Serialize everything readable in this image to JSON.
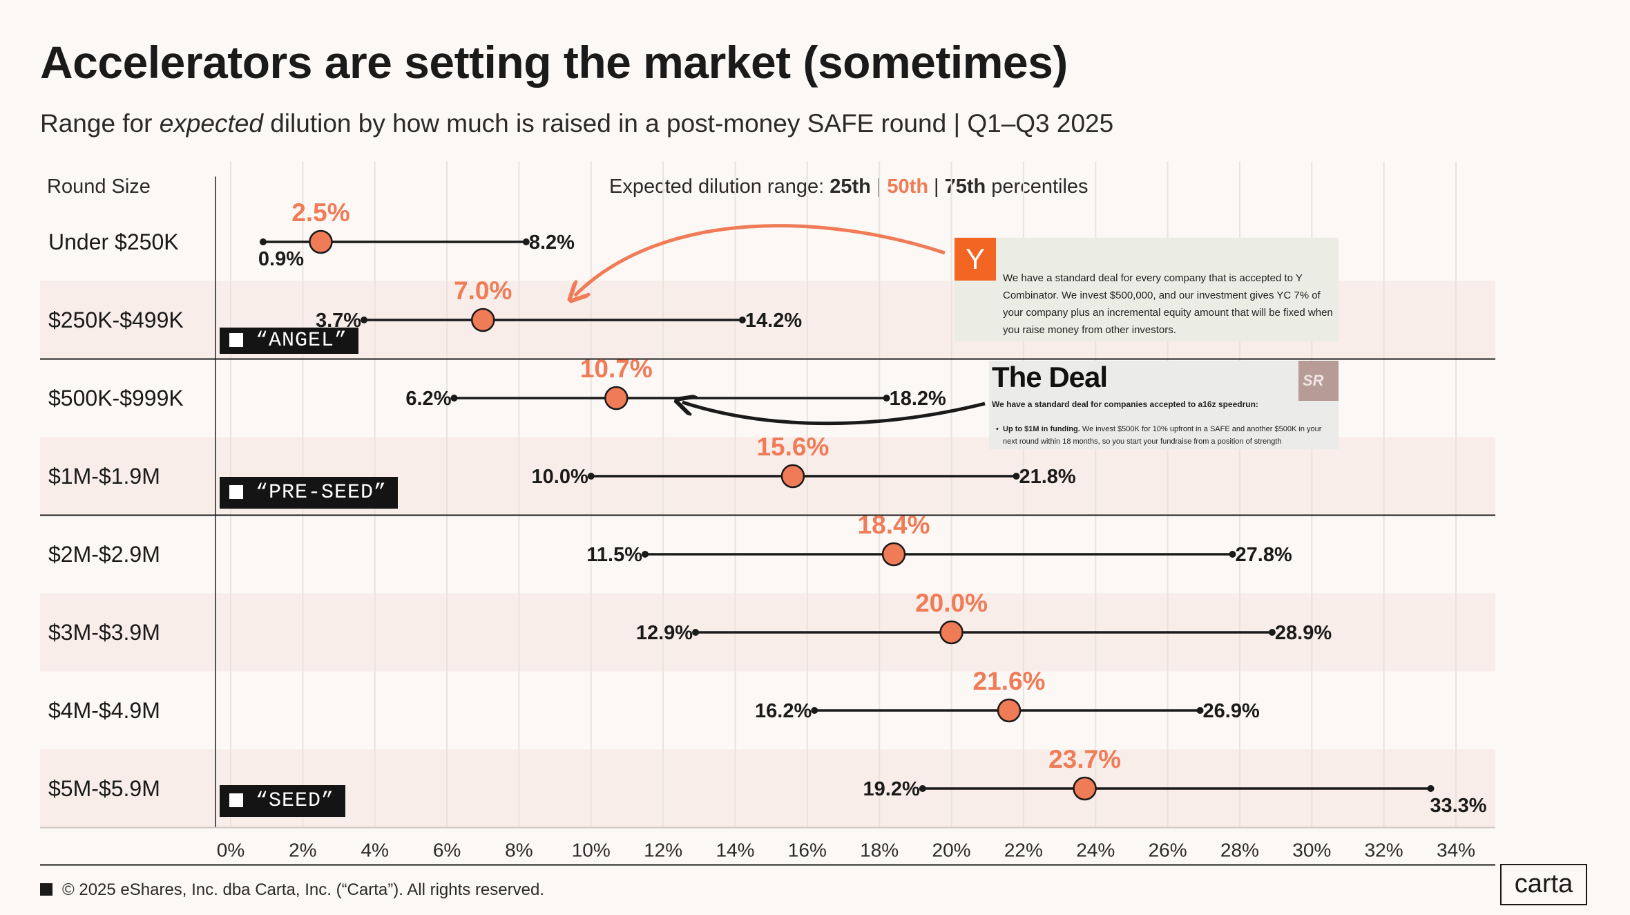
{
  "title": "Accelerators are setting the market (sometimes)",
  "subtitle": {
    "part1": "Range for ",
    "italic": "expected",
    "part2": " dilution by how much is raised in a  post-money SAFE round | Q1–Q3 2025"
  },
  "column_header": "Round Size",
  "legend": {
    "label": "Expected dilution range: ",
    "p25": "25th",
    "p50": "50th",
    "p75": "75th",
    "sep": "|",
    "suffix": " percentiles"
  },
  "colors": {
    "median": "#f07b57",
    "line": "#1a1a1a",
    "band": "#f8ede8",
    "grid": "#e9e3de"
  },
  "chart_data": {
    "type": "range-dot",
    "x_unit": "%",
    "xlim": [
      0,
      34
    ],
    "x_ticks": [
      "0%",
      "2%",
      "4%",
      "6%",
      "8%",
      "10%",
      "12%",
      "14%",
      "16%",
      "18%",
      "20%",
      "22%",
      "24%",
      "26%",
      "28%",
      "30%",
      "32%",
      "34%"
    ],
    "grid": true,
    "categories": [
      "Under $250K",
      "$250K-$499K",
      "$500K-$999K",
      "$1M-$1.9M",
      "$2M-$2.9M",
      "$3M-$3.9M",
      "$4M-$4.9M",
      "$5M-$5.9M"
    ],
    "series": [
      {
        "name": "25th",
        "values": [
          0.9,
          3.7,
          6.2,
          10.0,
          11.5,
          12.9,
          16.2,
          19.2
        ]
      },
      {
        "name": "50th",
        "values": [
          2.5,
          7.0,
          10.7,
          15.6,
          18.4,
          20.0,
          21.6,
          23.7
        ]
      },
      {
        "name": "75th",
        "values": [
          8.2,
          14.2,
          18.2,
          21.8,
          27.8,
          28.9,
          26.9,
          33.3
        ]
      }
    ],
    "labels": {
      "p25": [
        "0.9%",
        "3.7%",
        "6.2%",
        "10.0%",
        "11.5%",
        "12.9%",
        "16.2%",
        "19.2%"
      ],
      "p50": [
        "2.5%",
        "7.0%",
        "10.7%",
        "15.6%",
        "18.4%",
        "20.0%",
        "21.6%",
        "23.7%"
      ],
      "p75": [
        "8.2%",
        "14.2%",
        "18.2%",
        "21.8%",
        "27.8%",
        "28.9%",
        "26.9%",
        "33.3%"
      ]
    },
    "stages": [
      "“ANGEL”",
      "“PRE-SEED”",
      "“SEED”"
    ]
  },
  "callouts": {
    "yc": {
      "logo_letter": "Y",
      "text": "We have a standard deal for every company that is accepted to Y Combinator. We invest $500,000, and our investment gives YC 7% of your company plus an incremental equity amount that will be fixed when you raise money from other investors."
    },
    "a16z": {
      "title": "The Deal",
      "emblem": "SR",
      "intro": "We have a standard deal for companies accepted to a16z speedrun:",
      "bullet_bold": "Up to $1M in funding.",
      "bullet_text": " We invest $500K for 10% upfront in a SAFE and another $500K in your next round within 18 months, so you start your fundraise from a position of strength"
    }
  },
  "footer": "© 2025 eShares, Inc. dba Carta, Inc. (“Carta”). All rights reserved.",
  "logo": "carta"
}
